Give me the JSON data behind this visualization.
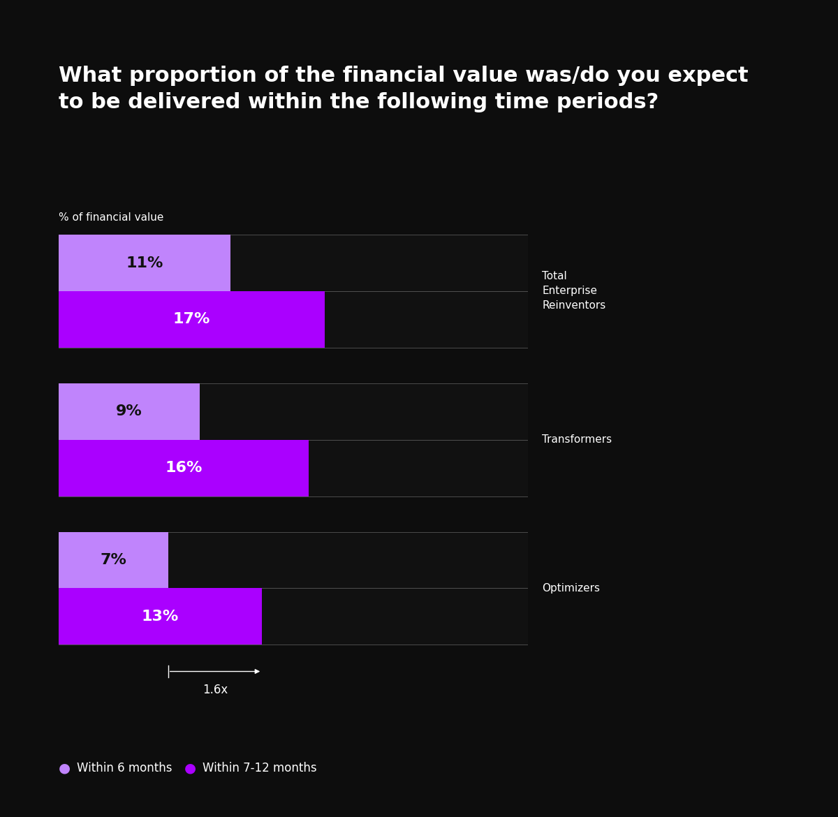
{
  "title": "What proportion of the financial value was/do you expect\nto be delivered within the following time periods?",
  "ylabel_label": "% of financial value",
  "background_color": "#0d0d0d",
  "text_color": "#ffffff",
  "groups": [
    {
      "label": "Total\nEnterprise\nReinventors",
      "within_6": 11,
      "within_7_12": 17
    },
    {
      "label": "Transformers",
      "within_6": 9,
      "within_7_12": 16
    },
    {
      "label": "Optimizers",
      "within_6": 7,
      "within_7_12": 13
    }
  ],
  "bar_scale": 30,
  "color_6months": "#c084fc",
  "color_7_12months": "#aa00ff",
  "bar_border_color": "#555555",
  "annotation_text": "1.6x",
  "legend_items": [
    {
      "label": "Within 6 months",
      "color": "#c084fc"
    },
    {
      "label": "Within 7-12 months",
      "color": "#aa00ff"
    }
  ],
  "title_fontsize": 22,
  "group_label_fontsize": 11,
  "bar_value_fontsize": 16,
  "ylabel_fontsize": 11,
  "legend_fontsize": 12,
  "annotation_fontsize": 12
}
